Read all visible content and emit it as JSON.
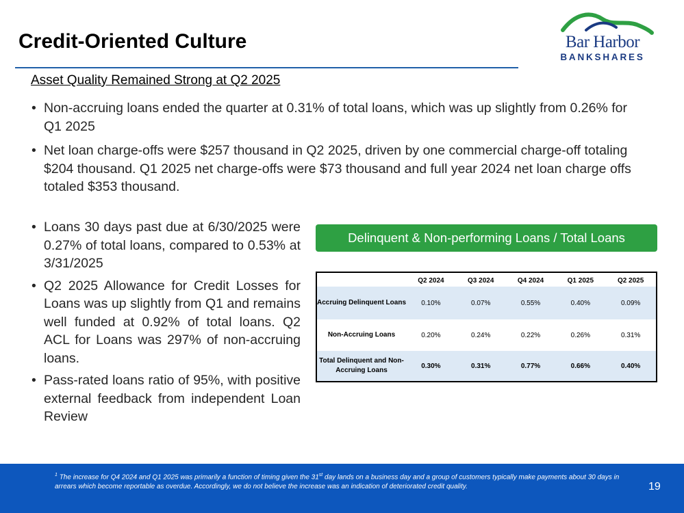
{
  "header": {
    "title": "Credit-Oriented Culture",
    "logo": {
      "name": "Bar Harbor",
      "sub": "BANKSHARES",
      "color": "#1a3a82",
      "swoosh_color": "#2ea043"
    }
  },
  "subtitle": "Asset Quality Remained Strong at Q2 2025",
  "bullets_top": [
    "Non-accruing loans ended the quarter at 0.31% of total loans, which was up slightly from 0.26% for Q1 2025",
    "Net loan charge-offs were $257 thousand in Q2 2025, driven by one commercial charge-off totaling $204 thousand. Q1 2025 net charge-offs were $73 thousand and full year 2024 net loan charge offs totaled $353 thousand."
  ],
  "bullets_left": [
    "Loans 30 days past due at 6/30/2025 were 0.27% of total loans, compared to 0.53% at 3/31/2025",
    "Q2 2025 Allowance for Credit Losses for Loans was up slightly from Q1 and remains well funded at 0.92% of total loans. Q2 ACL for Loans was 297% of non-accruing loans.",
    "Pass-rated loans ratio of 95%, with positive external feedback from independent Loan Review"
  ],
  "table": {
    "header_label": "Delinquent & Non-performing Loans / Total Loans",
    "columns": [
      "",
      "Q2 2024",
      "Q3 2024",
      "Q4 2024",
      "Q1 2025",
      "Q2 2025"
    ],
    "rows": [
      {
        "label": "Accruing Delinquent Loans",
        "values": [
          "0.10%",
          "0.07%",
          "0.55%",
          "0.40%",
          "0.09%"
        ]
      },
      {
        "label": "Non-Accruing Loans",
        "values": [
          "0.20%",
          "0.24%",
          "0.22%",
          "0.26%",
          "0.31%"
        ]
      },
      {
        "label": "Total Delinquent and Non-Accruing Loans",
        "values": [
          "0.30%",
          "0.31%",
          "0.77%",
          "0.66%",
          "0.40%"
        ]
      }
    ]
  },
  "footer": {
    "footnote_mark": "1",
    "footnote_pre": "The increase for Q4 2024 and Q1 2025 was primarily a function of timing given the 31",
    "footnote_sup": "st",
    "footnote_post": " day lands on a business day and a group of customers typically make payments about 30 days in arrears which become reportable as overdue. Accordingly, we do not believe the increase was an indication of deteriorated credit quality.",
    "page_number": "19"
  },
  "colors": {
    "accent_green": "#2ea043",
    "footer_blue": "#0d57bd",
    "rule_blue": "#1f5fa8",
    "table_shade": "#dde9f5"
  }
}
